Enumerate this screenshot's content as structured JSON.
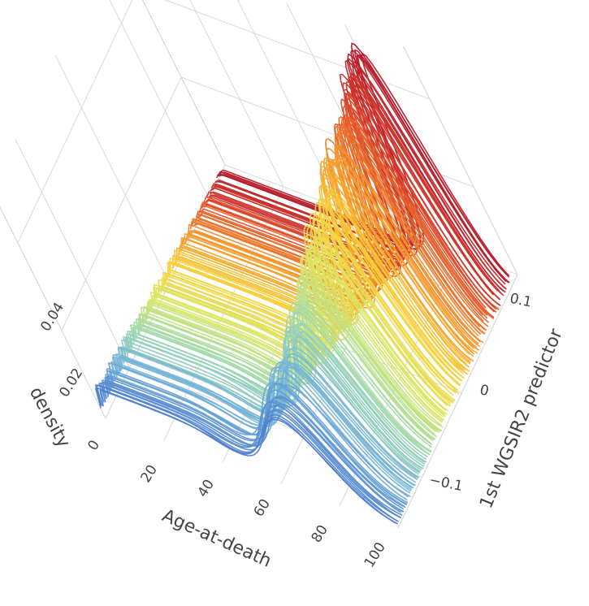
{
  "chart_data": {
    "type": "line",
    "subtype": "3d-ridgeline-densities",
    "xlabel": "Age-at-death",
    "ylabel": "1st WGSIR2 predictor",
    "zlabel": "density",
    "x_ticks": [
      "20",
      "40",
      "60",
      "80",
      "100"
    ],
    "y_ticks": [
      "−0.1",
      "0",
      "0.1"
    ],
    "z_ticks": [
      "0",
      "0.02",
      "0.04"
    ],
    "xlim": [
      0,
      100
    ],
    "ylim": [
      -0.16,
      0.14
    ],
    "zlim": [
      0,
      0.052
    ],
    "grid": true,
    "colorscale": [
      "#3b4cc0",
      "#4f7fd0",
      "#74b3d8",
      "#9fd8b0",
      "#d6e86a",
      "#f7d33c",
      "#f59a2c",
      "#e0472a",
      "#b2182b"
    ],
    "series_summary": {
      "curve_count": 170,
      "predictor_range": [
        -0.16,
        0.13
      ],
      "mode_age_low_predictor": 72,
      "mode_age_high_predictor": 84,
      "peak_density_low_predictor": 0.018,
      "peak_density_high_predictor": 0.05,
      "early_life_density": 0.007
    }
  }
}
